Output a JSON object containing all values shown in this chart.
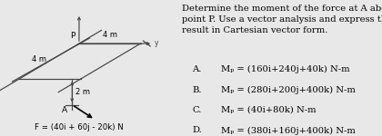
{
  "title_text": "Determine the moment of the force at A about\npoint P. Use a vector analysis and express the\nresult in Cartesian vector form.",
  "options": [
    [
      "A.",
      "Mₚ = (160i+240j+40k) N-m"
    ],
    [
      "B.",
      "Mₚ = (280i+200j+400k) N-m"
    ],
    [
      "C.",
      "Mₚ = (40i+80k) N-m"
    ],
    [
      "D.",
      "Mₚ = (380i+160j+400k) N-m"
    ]
  ],
  "force_label": "F = (40i + 60j - 20k) N",
  "dim1": "4 m",
  "dim2": "4 m",
  "dim3": "2 m",
  "label_P": "P",
  "label_A": "A",
  "bg_color": "#e8e8e8",
  "line_color": "#444444",
  "text_color": "#000000",
  "title_fontsize": 7.2,
  "option_fontsize": 7.2,
  "diagram_bg": "#e8e8e8"
}
